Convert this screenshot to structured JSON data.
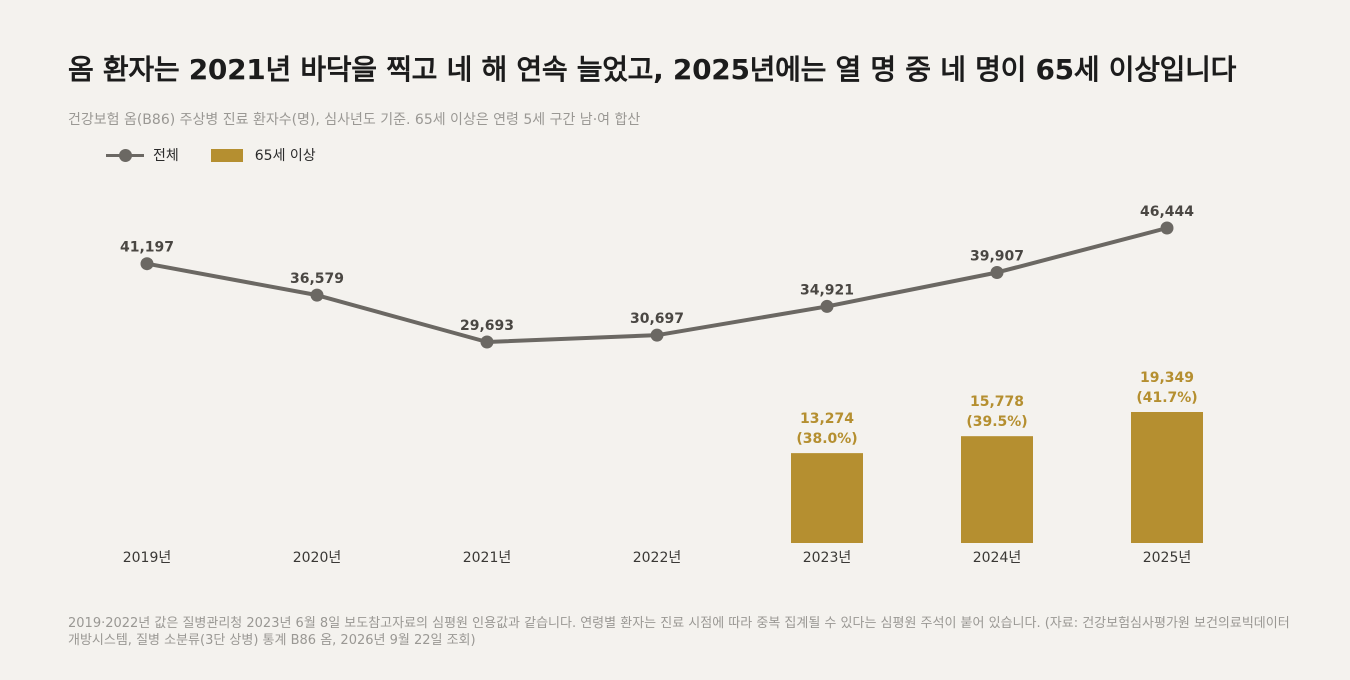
{
  "title": "옴 환자는 2021년 바닥을 찍고 네 해 연속 늘었고, 2025년에는 열 명 중 네 명이 65세 이상입니다",
  "subtitle": "건강보험 옴(B86) 주상병 진료 환자수(명), 심사년도 기준. 65세 이상은 연령 5세 구간 남·여 합산",
  "legend": {
    "total": "전체",
    "senior": "65세 이상"
  },
  "footnote": "2019·2022년 값은 질병관리청 2023년 6월 8일 보도참고자료의 심평원 인용값과 같습니다. 연령별 환자는 진료 시점에 따라 중복 집계될 수 있다는 심평원 주석이 붙어 있습니다. (자료: 건강보험심사평가원 보건의료빅데이터개방시스템, 질병 소분류(3단 상병) 통계 B86 옴, 2026년 9월 22일 조회)",
  "colors": {
    "line": "#6b6863",
    "bar": "#b58f30",
    "bar_label": "#b58f30",
    "line_label": "#4a4743"
  },
  "chart_data": {
    "type": "line",
    "categories": [
      "2019년",
      "2020년",
      "2021년",
      "2022년",
      "2023년",
      "2024년",
      "2025년"
    ],
    "series": [
      {
        "name": "전체",
        "type": "line",
        "values": [
          41197,
          36579,
          29693,
          30697,
          34921,
          39907,
          46444
        ],
        "labels": [
          "41,197",
          "36,579",
          "29,693",
          "30,697",
          "34,921",
          "39,907",
          "46,444"
        ]
      },
      {
        "name": "65세 이상",
        "type": "bar",
        "values": [
          null,
          null,
          null,
          null,
          13274,
          15778,
          19349
        ],
        "labels": [
          null,
          null,
          null,
          null,
          "13,274",
          "15,778",
          "19,349"
        ],
        "share_labels": [
          null,
          null,
          null,
          null,
          "(38.0%)",
          "(39.5%)",
          "(41.7%)"
        ]
      }
    ],
    "grid": false,
    "legend_position": "top-left"
  }
}
